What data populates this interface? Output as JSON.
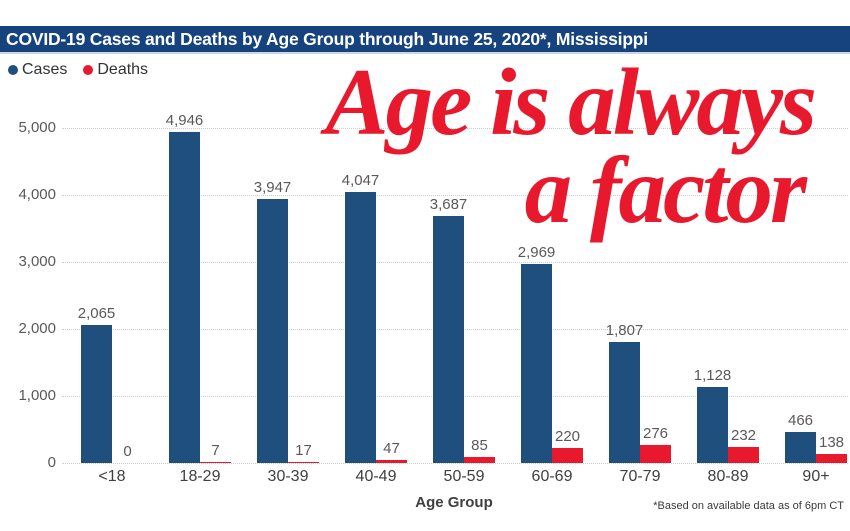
{
  "title_bar": {
    "text": "COVID-19 Cases and Deaths by Age Group through June 25, 2020*, Mississippi",
    "bg_color": "#16437e",
    "text_color": "#ffffff"
  },
  "legend": {
    "items": [
      {
        "label": "Cases",
        "color": "#1e4f7d"
      },
      {
        "label": "Deaths",
        "color": "#e8192c"
      }
    ]
  },
  "overlay": {
    "line1": "Age is always",
    "line2": "a factor",
    "color": "#e8192c"
  },
  "axis": {
    "x_title": "Age Group"
  },
  "footnote": "*Based on available data as of 6pm CT",
  "chart_data": {
    "type": "bar",
    "title": "COVID-19 Cases and Deaths by Age Group through June 25, 2020*, Mississippi",
    "categories": [
      "<18",
      "18-29",
      "30-39",
      "40-49",
      "50-59",
      "60-69",
      "70-79",
      "80-89",
      "90+"
    ],
    "series": [
      {
        "name": "Cases",
        "color": "#1e4f7d",
        "values": [
          2065,
          4946,
          3947,
          4047,
          3687,
          2969,
          1807,
          1128,
          466
        ]
      },
      {
        "name": "Deaths",
        "color": "#e8192c",
        "values": [
          0,
          7,
          17,
          47,
          85,
          220,
          276,
          232,
          138
        ]
      }
    ],
    "xlabel": "Age Group",
    "ylabel": "",
    "ylim": [
      0,
      5000
    ],
    "yticks": [
      0,
      1000,
      2000,
      3000,
      4000,
      5000
    ],
    "grid": "dotted horizontal",
    "legend_position": "top-left",
    "value_labels": true,
    "annotation": "Age is always a factor",
    "footnote": "*Based on available data as of 6pm CT"
  }
}
